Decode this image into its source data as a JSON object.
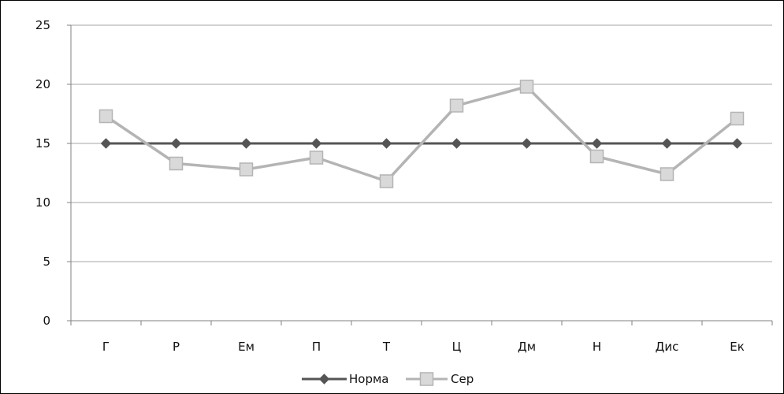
{
  "chart_data": {
    "type": "line",
    "categories": [
      "Г",
      "Р",
      "Ем",
      "П",
      "Т",
      "Ц",
      "Дм",
      "Н",
      "Дис",
      "Ек"
    ],
    "ylim": [
      0,
      25
    ],
    "yticks": [
      "0",
      "5",
      "10",
      "15",
      "20",
      "25"
    ],
    "grid": true,
    "legend_position": "bottom",
    "series": [
      {
        "name": "Норма",
        "values": [
          15,
          15,
          15,
          15,
          15,
          15,
          15,
          15,
          15,
          15
        ],
        "color": "#555555",
        "marker": "diamond"
      },
      {
        "name": "Сер",
        "values": [
          17.3,
          13.3,
          12.8,
          13.8,
          11.8,
          18.2,
          19.8,
          13.9,
          12.4,
          17.1
        ],
        "color": "#b4b4b4",
        "marker": "square"
      }
    ]
  }
}
